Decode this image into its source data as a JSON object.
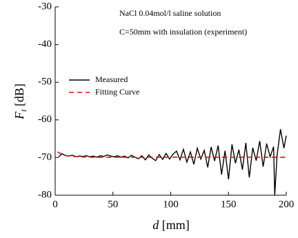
{
  "chart_data": {
    "type": "line",
    "annotations": [
      "NaCl 0.04mol/l saline solution",
      "C=50mm with insulation (experiment)"
    ],
    "ylabel": {
      "symbol": "F",
      "subscript": "t",
      "unit": "[dB]"
    },
    "xlabel": {
      "symbol": "d",
      "unit": "[mm]"
    },
    "xlim": [
      0,
      200
    ],
    "xticks": [
      0,
      50,
      100,
      150,
      200
    ],
    "ylim": [
      -80,
      -30
    ],
    "yticks": [
      -80,
      -70,
      -60,
      -50,
      -40,
      -30
    ],
    "legend": "upper left",
    "series": [
      {
        "name": "Measured",
        "color": "#000000",
        "dash": "solid",
        "x": [
          3,
          6,
          9,
          12,
          15,
          18,
          21,
          24,
          27,
          30,
          33,
          36,
          39,
          42,
          45,
          48,
          51,
          54,
          57,
          60,
          63,
          66,
          69,
          72,
          75,
          78,
          81,
          84,
          87,
          90,
          93,
          96,
          99,
          102,
          105,
          108,
          111,
          114,
          117,
          120,
          123,
          126,
          129,
          132,
          135,
          138,
          141,
          144,
          147,
          150,
          153,
          156,
          159,
          162,
          165,
          168,
          171,
          174,
          177,
          180,
          183,
          186,
          189,
          190,
          192,
          195,
          198,
          200
        ],
        "values": [
          -69.8,
          -69,
          -69.5,
          -69.6,
          -69.4,
          -69.8,
          -69.6,
          -69.7,
          -69.5,
          -69.8,
          -69.6,
          -69.9,
          -69.5,
          -69.7,
          -69.3,
          -69.6,
          -69.8,
          -69.5,
          -69.9,
          -69.6,
          -70.1,
          -69.4,
          -69.9,
          -70.3,
          -69.5,
          -70.6,
          -69.3,
          -70.2,
          -70.8,
          -69.2,
          -70.5,
          -68.9,
          -70.4,
          -69.1,
          -68.3,
          -70.6,
          -67.8,
          -71.2,
          -68.5,
          -71.8,
          -67.5,
          -70.4,
          -68.1,
          -72.6,
          -67.2,
          -70.9,
          -66.8,
          -74.5,
          -68.2,
          -75.8,
          -66.5,
          -71.5,
          -67.9,
          -73.2,
          -66.1,
          -75.3,
          -67.4,
          -70.8,
          -65.6,
          -72.4,
          -66.3,
          -69.8,
          -67.1,
          -80,
          -69.5,
          -62.5,
          -67.5,
          -64.2
        ]
      },
      {
        "name": "Fitting Curve",
        "color": "#ff0000",
        "dash": "dashed",
        "x": [
          2,
          5,
          10,
          15,
          20,
          30,
          200
        ],
        "values": [
          -68.5,
          -69,
          -69.5,
          -69.7,
          -69.8,
          -69.9,
          -69.9
        ]
      }
    ]
  }
}
